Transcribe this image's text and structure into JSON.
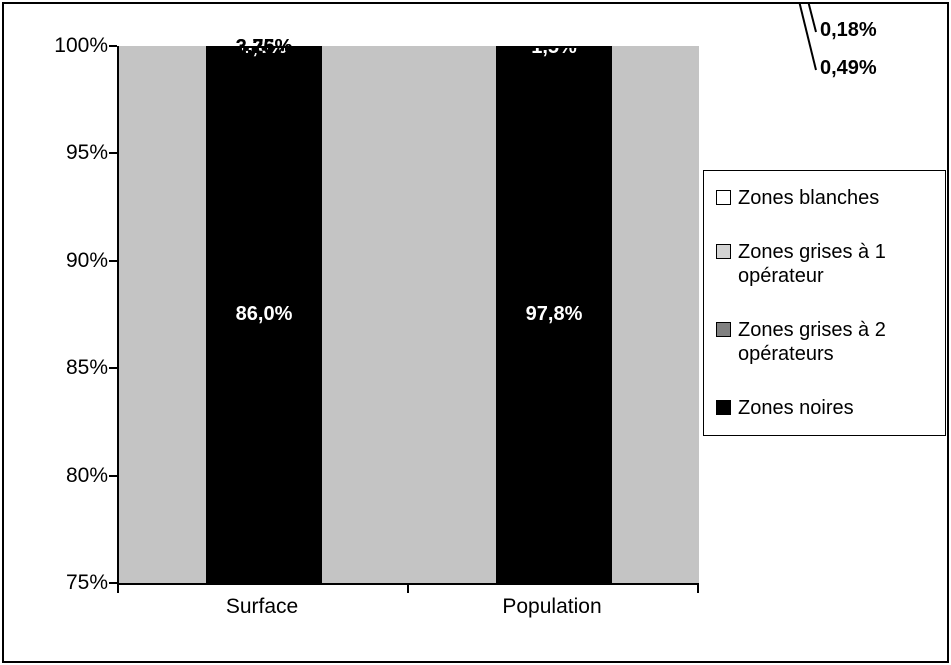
{
  "chart_data": {
    "type": "bar",
    "subtype": "stacked-column",
    "categories": [
      "Surface",
      "Population"
    ],
    "series": [
      {
        "name": "Zones noires",
        "color": "#000000",
        "label_color": "#ffffff",
        "values": [
          86.0,
          97.8
        ],
        "labels": [
          "86,0%",
          "97,8%"
        ],
        "show_label": [
          true,
          true
        ]
      },
      {
        "name": "Zones grises à 2 opérateurs",
        "color": "#808080",
        "label_color": "#ffffff",
        "values": [
          8.0,
          1.5
        ],
        "labels": [
          "8,0%",
          "1,5%"
        ],
        "show_label": [
          true,
          true
        ]
      },
      {
        "name": "Zones grises à 1 opérateur",
        "color": "#d3d3d3",
        "label_color": "#000000",
        "values": [
          3.76,
          0.49
        ],
        "labels": [
          "3,76%",
          "0,49%"
        ],
        "show_label": [
          true,
          false
        ]
      },
      {
        "name": "Zones blanches",
        "color": "#ffffff",
        "label_color": "#000000",
        "values": [
          2.25,
          0.18
        ],
        "labels": [
          "2,25%",
          "0,18%"
        ],
        "show_label": [
          true,
          false
        ]
      }
    ],
    "y_axis": {
      "min": 75,
      "max": 100,
      "tick_labels": [
        "100%",
        "95%",
        "90%",
        "85%",
        "80%",
        "75%"
      ],
      "tick_values": [
        100,
        95,
        90,
        85,
        80,
        75
      ]
    },
    "legend": {
      "position": "right",
      "entries": [
        "Zones blanches",
        "Zones grises à 1 opérateur",
        "Zones grises à 2 opérateurs",
        "Zones noires"
      ]
    },
    "annotations": [
      {
        "text": "0,18%",
        "series": "Zones blanches",
        "category": "Population"
      },
      {
        "text": "0,49%",
        "series": "Zones grises à 1 opérateur",
        "category": "Population"
      }
    ],
    "grid": false,
    "title": "",
    "xlabel": "",
    "ylabel": ""
  },
  "colors": {
    "plot_background": "#c4c4c4",
    "axis": "#000000",
    "figure_border": "#000000",
    "legend_background": "#ffffff"
  }
}
